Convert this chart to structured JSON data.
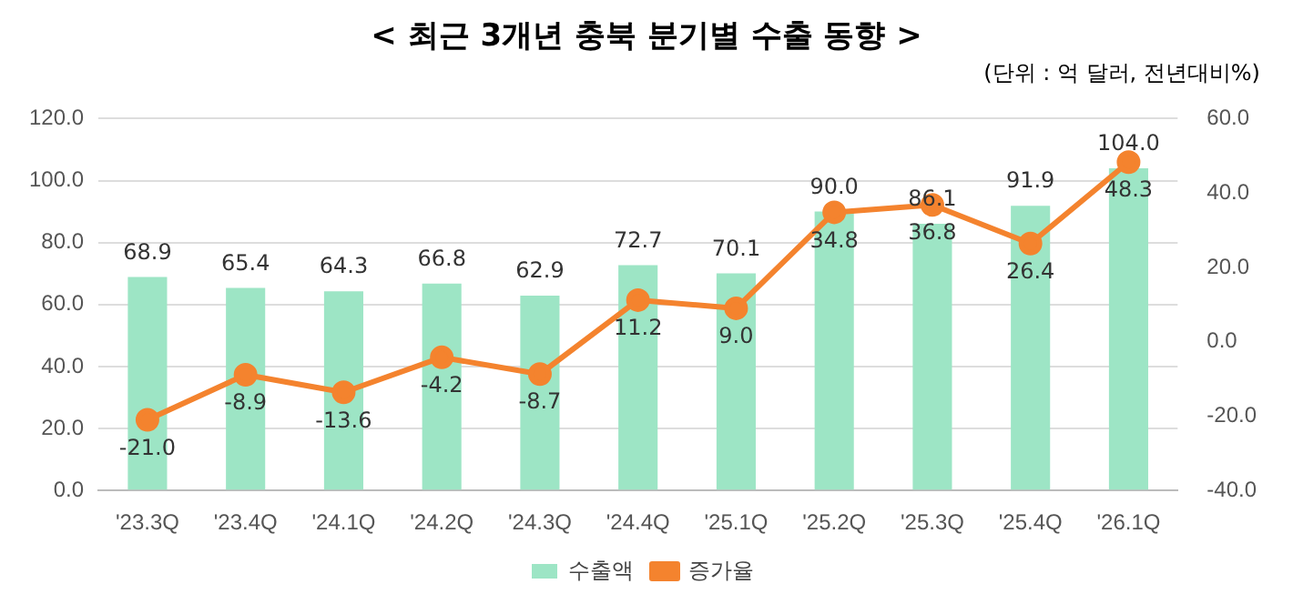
{
  "chart_data": {
    "type": "bar",
    "title": "< 최근 3개년 충북 분기별 수출 동향 >",
    "subtitle": "(단위 : 억 달러, 전년대비%)",
    "categories": [
      "'23.3Q",
      "'23.4Q",
      "'24.1Q",
      "'24.2Q",
      "'24.3Q",
      "'24.4Q",
      "'25.1Q",
      "'25.2Q",
      "'25.3Q",
      "'25.4Q",
      "'26.1Q"
    ],
    "series": [
      {
        "name": "수출액",
        "color": "#9de5c5",
        "values": [
          68.9,
          65.4,
          64.3,
          66.8,
          62.9,
          72.7,
          70.1,
          90.0,
          86.1,
          91.9,
          104.0
        ],
        "value_labels": [
          "68.9",
          "65.4",
          "64.3",
          "66.8",
          "62.9",
          "72.7",
          "70.1",
          "90.0",
          "86.1",
          "91.9",
          "104.0"
        ]
      },
      {
        "name": "증가율",
        "type": "line",
        "axis": "y2",
        "color": "#f4832e",
        "marker": "circle",
        "values": [
          -21.0,
          -8.9,
          -13.6,
          -4.2,
          -8.7,
          11.2,
          9.0,
          34.8,
          36.8,
          26.4,
          48.3
        ],
        "value_labels": [
          "-21.0",
          "-8.9",
          "-13.6",
          "-4.2",
          "-8.7",
          "11.2",
          "9.0",
          "34.8",
          "36.8",
          "26.4",
          "48.3"
        ]
      }
    ],
    "ylim": [
      0,
      120
    ],
    "yticks": [
      {
        "value": 0,
        "label": "0.0"
      },
      {
        "value": 20,
        "label": "20.0"
      },
      {
        "value": 40,
        "label": "40.0"
      },
      {
        "value": 60,
        "label": "60.0"
      },
      {
        "value": 80,
        "label": "80.0"
      },
      {
        "value": 100,
        "label": "100.0"
      },
      {
        "value": 120,
        "label": "120.0"
      }
    ],
    "y2lim": [
      -40,
      60
    ],
    "y2ticks": [
      {
        "value": -40,
        "label": "-40.0"
      },
      {
        "value": -20,
        "label": "-20.0"
      },
      {
        "value": 0,
        "label": "0.0"
      },
      {
        "value": 20,
        "label": "20.0"
      },
      {
        "value": 40,
        "label": "40.0"
      },
      {
        "value": 60,
        "label": "60.0"
      }
    ],
    "grid": "y",
    "legend": "bottom"
  }
}
